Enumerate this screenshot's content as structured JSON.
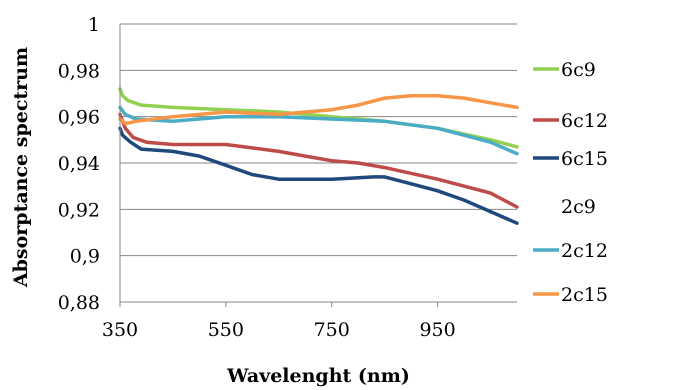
{
  "chart_data": {
    "type": "line",
    "xlabel": "Wavelenght (nm)",
    "ylabel": "Absorptance spectrum",
    "xlim": [
      350,
      1100
    ],
    "ylim": [
      0.88,
      1.0
    ],
    "xticks": [
      350,
      550,
      750,
      950
    ],
    "xtick_labels": [
      "350",
      "550",
      "750",
      "950"
    ],
    "yticks": [
      0.88,
      0.9,
      0.92,
      0.94,
      0.96,
      0.98,
      1.0
    ],
    "ytick_labels": [
      "0,88",
      "0,9",
      "0,92",
      "0,94",
      "0,96",
      "0,98",
      "1"
    ],
    "grid": "horizontal",
    "legend_position": "right",
    "series": [
      {
        "name": "6c9",
        "color": "#92D050",
        "x": [
          350,
          355,
          365,
          390,
          450,
          550,
          650,
          750,
          850,
          950,
          1050,
          1100
        ],
        "y": [
          0.972,
          0.969,
          0.967,
          0.965,
          0.964,
          0.963,
          0.962,
          0.96,
          0.958,
          0.955,
          0.95,
          0.947
        ]
      },
      {
        "name": "6c12",
        "color": "#BE4B48",
        "x": [
          350,
          360,
          375,
          400,
          450,
          550,
          650,
          700,
          750,
          800,
          850,
          950,
          1050,
          1100
        ],
        "y": [
          0.961,
          0.955,
          0.951,
          0.949,
          0.948,
          0.948,
          0.945,
          0.943,
          0.941,
          0.94,
          0.938,
          0.933,
          0.927,
          0.921
        ]
      },
      {
        "name": "6c15",
        "color": "#1F497D",
        "x": [
          350,
          355,
          370,
          390,
          450,
          500,
          550,
          600,
          650,
          750,
          830,
          850,
          900,
          950,
          1000,
          1050,
          1100
        ],
        "y": [
          0.955,
          0.952,
          0.949,
          0.946,
          0.945,
          0.943,
          0.939,
          0.935,
          0.933,
          0.933,
          0.934,
          0.934,
          0.931,
          0.928,
          0.924,
          0.919,
          0.914
        ]
      },
      {
        "name": "2c9",
        "color": "#8064A2",
        "x": [],
        "y": []
      },
      {
        "name": "2c12",
        "color": "#4BACC6",
        "x": [
          350,
          360,
          380,
          450,
          550,
          650,
          750,
          850,
          950,
          1050,
          1100
        ],
        "y": [
          0.964,
          0.961,
          0.959,
          0.958,
          0.96,
          0.96,
          0.959,
          0.958,
          0.955,
          0.949,
          0.944
        ]
      },
      {
        "name": "2c15",
        "color": "#F79646",
        "x": [
          350,
          360,
          380,
          450,
          550,
          650,
          750,
          800,
          850,
          900,
          950,
          1000,
          1050,
          1100
        ],
        "y": [
          0.959,
          0.957,
          0.958,
          0.96,
          0.962,
          0.961,
          0.963,
          0.965,
          0.968,
          0.969,
          0.969,
          0.968,
          0.966,
          0.964
        ]
      }
    ]
  }
}
